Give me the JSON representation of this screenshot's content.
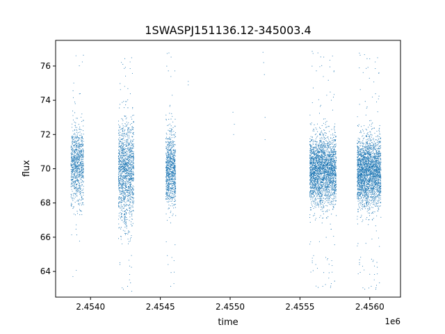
{
  "chart_data": {
    "type": "scatter",
    "title": "1SWASPJ151136.12-345003.4",
    "xlabel": "time",
    "ylabel": "flux",
    "x_offset_label": "1e6",
    "xlim": [
      2453750,
      2456220
    ],
    "ylim": [
      62.5,
      77.5
    ],
    "x_ticks": [
      2454000,
      2454500,
      2455000,
      2455500,
      2456000
    ],
    "x_tick_labels": [
      "2.4540",
      "2.4545",
      "2.4550",
      "2.4555",
      "2.4560"
    ],
    "y_ticks": [
      64,
      66,
      68,
      70,
      72,
      74,
      76
    ],
    "y_tick_labels": [
      "64",
      "66",
      "68",
      "70",
      "72",
      "74",
      "76"
    ],
    "marker_color": "#1f77b4",
    "grid": false,
    "series": [
      {
        "clusters": [
          {
            "x_range": [
              2453860,
              2453950
            ],
            "y_mean": 70.2,
            "y_spread": 1.1,
            "count": 900
          },
          {
            "x_range": [
              2454200,
              2454310
            ],
            "y_mean": 69.8,
            "y_spread": 1.5,
            "count": 1400
          },
          {
            "x_range": [
              2454540,
              2454610
            ],
            "y_mean": 69.9,
            "y_spread": 1.1,
            "count": 900
          },
          {
            "x_range": [
              2455570,
              2455760
            ],
            "y_mean": 69.9,
            "y_spread": 1.0,
            "count": 2600
          },
          {
            "x_range": [
              2455910,
              2456080
            ],
            "y_mean": 69.8,
            "y_spread": 1.0,
            "count": 2600
          }
        ],
        "sparse_points": [
          {
            "x": 2454700,
            "y": 74.9
          },
          {
            "x": 2454700,
            "y": 75.1
          },
          {
            "x": 2455020,
            "y": 73.3
          },
          {
            "x": 2455030,
            "y": 72.6
          },
          {
            "x": 2455025,
            "y": 72.0
          },
          {
            "x": 2455235,
            "y": 76.8
          },
          {
            "x": 2455245,
            "y": 75.5
          },
          {
            "x": 2455250,
            "y": 73.0
          },
          {
            "x": 2455250,
            "y": 71.7
          },
          {
            "x": 2455240,
            "y": 76.2
          }
        ]
      }
    ]
  }
}
